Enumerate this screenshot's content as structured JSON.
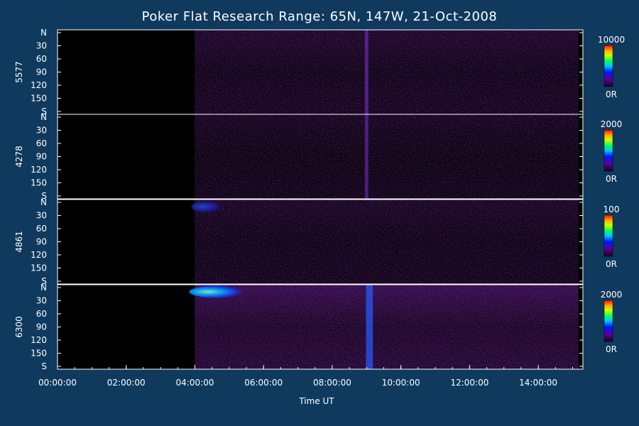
{
  "chart_data": {
    "type": "heatmap",
    "title": "Poker Flat Research Range: 65N, 147W, 21-Oct-2008",
    "xlabel": "Time UT",
    "x_ticks": [
      "00:00:00",
      "02:00:00",
      "04:00:00",
      "06:00:00",
      "08:00:00",
      "10:00:00",
      "12:00:00",
      "14:00:00"
    ],
    "y_ticks": [
      "N",
      "30",
      "60",
      "90",
      "120",
      "150",
      "S"
    ],
    "panels": [
      {
        "label": "5577",
        "colorbar": {
          "min_label": "0R",
          "max_label": "10000"
        },
        "features": [
          {
            "start": "04:00:00",
            "end": "15:10:00",
            "intensity": 0.18
          },
          {
            "start": "08:55:00",
            "end": "09:05:00",
            "intensity": 0.6
          }
        ]
      },
      {
        "label": "4278",
        "colorbar": {
          "min_label": "0R",
          "max_label": "2000"
        },
        "features": [
          {
            "start": "04:00:00",
            "end": "15:10:00",
            "intensity": 0.12
          },
          {
            "start": "08:55:00",
            "end": "09:05:00",
            "intensity": 0.55
          }
        ]
      },
      {
        "label": "4861",
        "colorbar": {
          "min_label": "0R",
          "max_label": "100"
        },
        "features": [
          {
            "start": "04:00:00",
            "end": "15:10:00",
            "intensity": 0.15
          },
          {
            "start": "04:00:00",
            "end": "05:00:00",
            "intensity": 0.7
          }
        ]
      },
      {
        "label": "6300",
        "colorbar": {
          "min_label": "0R",
          "max_label": "2000"
        },
        "features": [
          {
            "start": "04:00:00",
            "end": "15:10:00",
            "intensity": 0.35
          },
          {
            "start": "04:00:00",
            "end": "05:40:00",
            "intensity": 0.85
          },
          {
            "start": "08:55:00",
            "end": "09:15:00",
            "intensity": 0.7
          }
        ]
      }
    ]
  }
}
